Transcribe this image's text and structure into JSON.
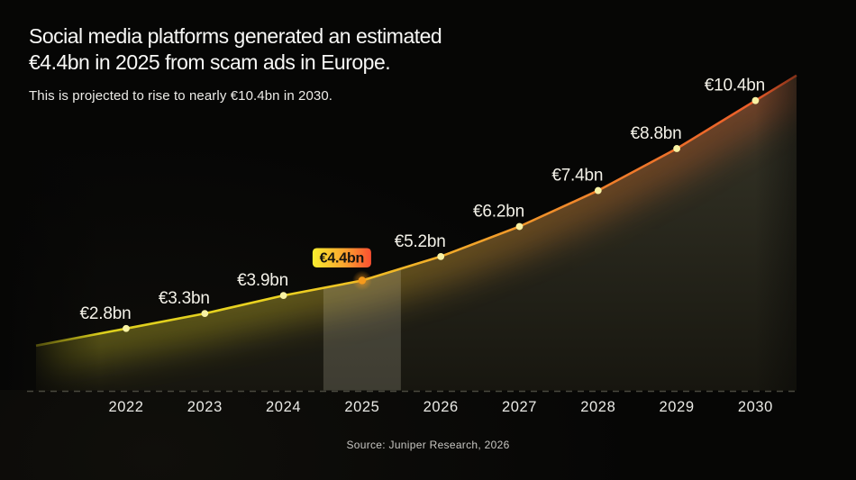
{
  "header": {
    "title_line1": "Social media platforms generated an estimated",
    "title_line2": "€4.4bn in 2025 from scam ads in Europe.",
    "subtitle": "This is projected to rise to nearly €10.4bn in 2030."
  },
  "source": "Source: Juniper Research, 2026",
  "chart_data": {
    "type": "area",
    "title": "Social media platforms generated an estimated €4.4bn in 2025 from scam ads in Europe.",
    "subtitle": "This is projected to rise to nearly €10.4bn in 2030.",
    "source": "Source: Juniper Research, 2026",
    "categories": [
      "2022",
      "2023",
      "2024",
      "2025",
      "2026",
      "2027",
      "2028",
      "2029",
      "2030"
    ],
    "values": [
      2.8,
      3.3,
      3.9,
      4.4,
      5.2,
      6.2,
      7.4,
      8.8,
      10.4
    ],
    "value_labels": [
      "€2.8bn",
      "€3.3bn",
      "€3.9bn",
      "€4.4bn",
      "€5.2bn",
      "€6.2bn",
      "€7.4bn",
      "€8.8bn",
      "€10.4bn"
    ],
    "unit": "€bn",
    "highlight_index": 3,
    "highlight_category": "2025",
    "highlight_label": "€4.4bn",
    "xlabel": "",
    "ylabel": "",
    "ylim": [
      0,
      11
    ],
    "grid": false,
    "legend": false,
    "colors": {
      "background": "#060605",
      "line_start": "#d6cd1b",
      "line_mid": "#f2ab2a",
      "line_end": "#ea5429",
      "dot": "#f8f2a4",
      "highlight_dot": "#f69a1c",
      "badge_from": "#f9ed2f",
      "badge_mid": "#fba32f",
      "badge_to": "#fb4f31",
      "area_top": "#3a392b",
      "area_bottom": "#17160f",
      "band_overlay": "rgba(245,240,210,0.18)",
      "axis_dash": "#49483e",
      "label_text": "#f3f1e8"
    }
  }
}
